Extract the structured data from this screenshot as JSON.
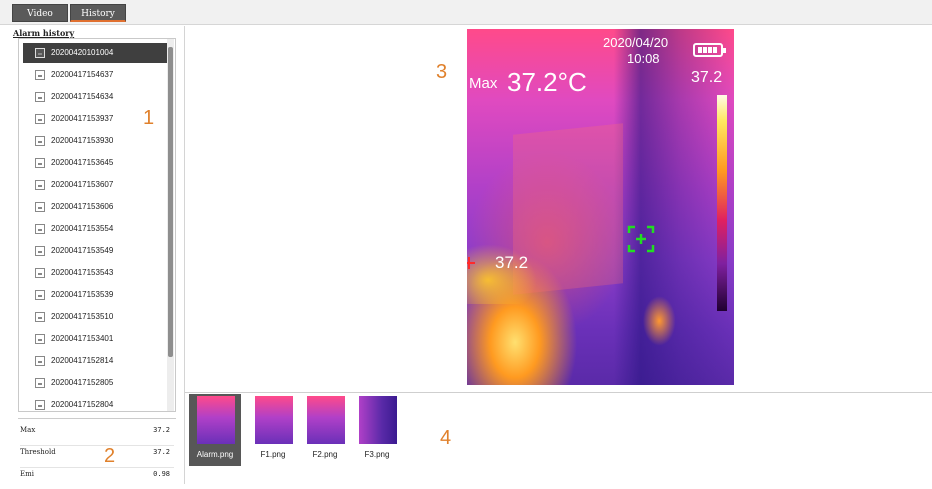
{
  "tabs": [
    {
      "label": "Video"
    },
    {
      "label": "History"
    }
  ],
  "sidebar": {
    "title": "Alarm history",
    "files": [
      "20200420101004",
      "20200417154637",
      "20200417154634",
      "20200417153937",
      "20200417153930",
      "20200417153645",
      "20200417153607",
      "20200417153606",
      "20200417153554",
      "20200417153549",
      "20200417153543",
      "20200417153539",
      "20200417153510",
      "20200417153401",
      "20200417152814",
      "20200417152805",
      "20200417152804"
    ],
    "selected_index": 0,
    "stats": [
      {
        "label": "Max",
        "value": "37.2"
      },
      {
        "label": "Threshold",
        "value": "37.2"
      },
      {
        "label": "Emi",
        "value": "0.98"
      }
    ]
  },
  "markers": [
    "1",
    "2",
    "3",
    "4"
  ],
  "viewer": {
    "max_label": "Max",
    "max_value": "37.2°C",
    "date": "2020/04/20",
    "time": "10:08",
    "scale_top": "37.2",
    "spot_value": "37.2",
    "battery_icon": "battery-full-icon",
    "crosshair_color": "#22dd22",
    "accent_color": "#e0812c"
  },
  "thumbnails": [
    {
      "label": "Alarm.png",
      "selected": true
    },
    {
      "label": "F1.png",
      "selected": false
    },
    {
      "label": "F2.png",
      "selected": false
    },
    {
      "label": "F3.png",
      "selected": false
    }
  ]
}
